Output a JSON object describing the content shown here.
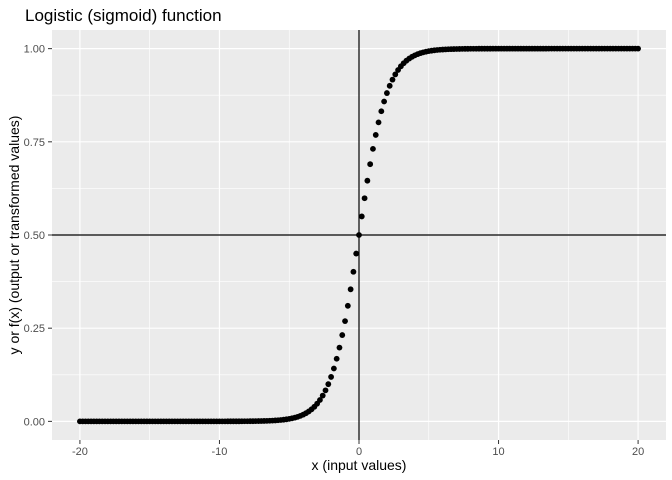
{
  "chart_data": {
    "type": "scatter",
    "title": "Logistic (sigmoid) function",
    "xlabel": "x (input values)",
    "ylabel": "y or f(x) (output or transformed values)",
    "xlim": [
      -22,
      22
    ],
    "ylim": [
      -0.05,
      1.05
    ],
    "x_ticks": [
      -20,
      -10,
      0,
      10,
      20
    ],
    "x_tick_labels": [
      "-20",
      "-10",
      "0",
      "10",
      "20"
    ],
    "y_ticks": [
      0,
      0.25,
      0.5,
      0.75,
      1.0
    ],
    "y_tick_labels": [
      "0.00",
      "0.25",
      "0.50",
      "0.75",
      "1.00"
    ],
    "grid": true,
    "reference_lines": {
      "vertical_x": 0,
      "horizontal_y": 0.5
    },
    "series": [
      {
        "function": "1 / (1 + exp(-x))",
        "x_range": [
          -20,
          20
        ],
        "x_step": 0.2,
        "color": "#000000"
      }
    ],
    "background_color": "#ebebeb",
    "grid_color": "#ffffff"
  }
}
